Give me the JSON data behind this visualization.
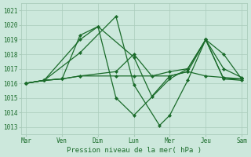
{
  "xlabel": "Pression niveau de la mer( hPa )",
  "bg_color": "#cce8dc",
  "grid_color": "#aaccbb",
  "line_color": "#1a6b2a",
  "ylim": [
    1012.5,
    1021.5
  ],
  "yticks": [
    1013,
    1014,
    1015,
    1016,
    1017,
    1018,
    1019,
    1020,
    1021
  ],
  "day_labels": [
    "Mar",
    "Ven",
    "Dim",
    "Lun",
    "Mer",
    "Jeu",
    "Sam"
  ],
  "day_positions": [
    0,
    14,
    28,
    42,
    56,
    70,
    84
  ],
  "xlim": [
    -2,
    86
  ],
  "series": [
    {
      "x": [
        0,
        7,
        21,
        35,
        42,
        52,
        56,
        63,
        70,
        77,
        84
      ],
      "y": [
        1016.0,
        1016.2,
        1018.1,
        1020.6,
        1015.9,
        1013.1,
        1013.8,
        1016.2,
        1019.0,
        1016.3,
        1016.2
      ]
    },
    {
      "x": [
        0,
        7,
        21,
        28,
        42,
        49,
        56,
        63,
        70,
        77,
        84
      ],
      "y": [
        1016.0,
        1016.2,
        1019.0,
        1019.9,
        1017.8,
        1015.1,
        1016.5,
        1016.8,
        1019.0,
        1018.0,
        1016.3
      ]
    },
    {
      "x": [
        0,
        7,
        14,
        21,
        35,
        42,
        56,
        63,
        70,
        77,
        84
      ],
      "y": [
        1016.0,
        1016.2,
        1016.3,
        1016.5,
        1016.5,
        1016.5,
        1016.5,
        1016.8,
        1016.5,
        1016.4,
        1016.3
      ]
    },
    {
      "x": [
        0,
        7,
        14,
        21,
        35,
        42,
        49,
        56,
        63,
        70,
        77,
        84
      ],
      "y": [
        1016.0,
        1016.2,
        1016.3,
        1016.5,
        1016.8,
        1018.0,
        1016.5,
        1016.8,
        1017.0,
        1019.0,
        1017.0,
        1016.4
      ]
    },
    {
      "x": [
        0,
        7,
        14,
        21,
        28,
        35,
        42,
        56,
        63,
        70,
        77,
        84
      ],
      "y": [
        1016.0,
        1016.2,
        1016.3,
        1019.3,
        1019.9,
        1015.0,
        1013.8,
        1016.3,
        1017.0,
        1019.0,
        1016.3,
        1016.3
      ]
    }
  ],
  "marker": "D",
  "markersize": 2.0,
  "linewidth": 0.9,
  "tick_fontsize": 5.5,
  "label_fontsize": 6.5
}
